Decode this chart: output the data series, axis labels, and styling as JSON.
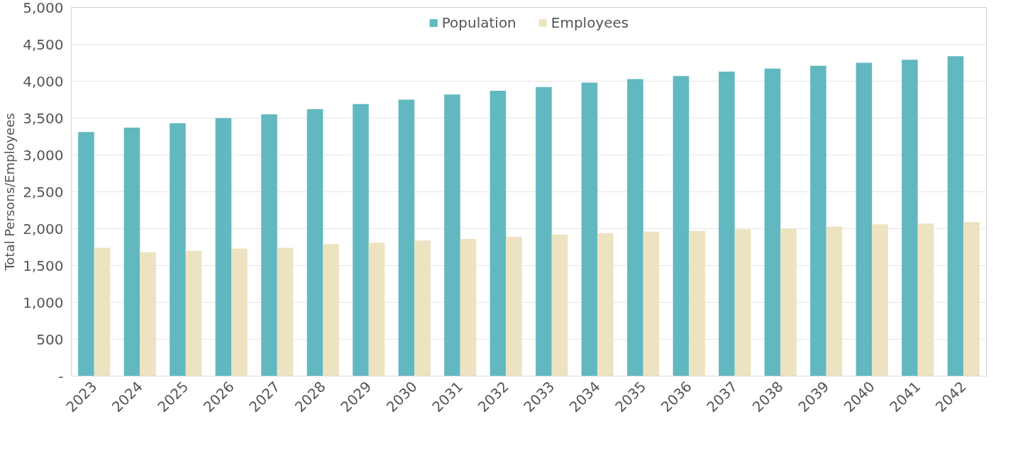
{
  "chart_data": {
    "type": "bar",
    "ylabel": "Total Persons/Employees",
    "categories": [
      "2023",
      "2024",
      "2025",
      "2026",
      "2027",
      "2028",
      "2029",
      "2030",
      "2031",
      "2032",
      "2033",
      "2034",
      "2035",
      "2036",
      "2037",
      "2038",
      "2039",
      "2040",
      "2041",
      "2042"
    ],
    "series": [
      {
        "name": "Population",
        "color": "#62b8c0",
        "values": [
          3310,
          3370,
          3430,
          3500,
          3550,
          3620,
          3690,
          3750,
          3820,
          3870,
          3920,
          3980,
          4030,
          4070,
          4130,
          4170,
          4210,
          4250,
          4290,
          4340
        ]
      },
      {
        "name": "Employees",
        "color": "#ede3c1",
        "values": [
          1740,
          1680,
          1700,
          1730,
          1740,
          1790,
          1810,
          1840,
          1860,
          1890,
          1920,
          1940,
          1960,
          1970,
          1990,
          2000,
          2030,
          2060,
          2070,
          2090
        ]
      }
    ],
    "ylim": [
      0,
      5000
    ],
    "yticks": [
      {
        "value": 0,
        "label": "-"
      },
      {
        "value": 500,
        "label": "500"
      },
      {
        "value": 1000,
        "label": "1,000"
      },
      {
        "value": 1500,
        "label": "1,500"
      },
      {
        "value": 2000,
        "label": "2,000"
      },
      {
        "value": 2500,
        "label": "2,500"
      },
      {
        "value": 3000,
        "label": "3,000"
      },
      {
        "value": 3500,
        "label": "3,500"
      },
      {
        "value": 4000,
        "label": "4,000"
      },
      {
        "value": 4500,
        "label": "4,500"
      },
      {
        "value": 5000,
        "label": "5,000"
      }
    ],
    "grid": "y",
    "legend": "top"
  }
}
